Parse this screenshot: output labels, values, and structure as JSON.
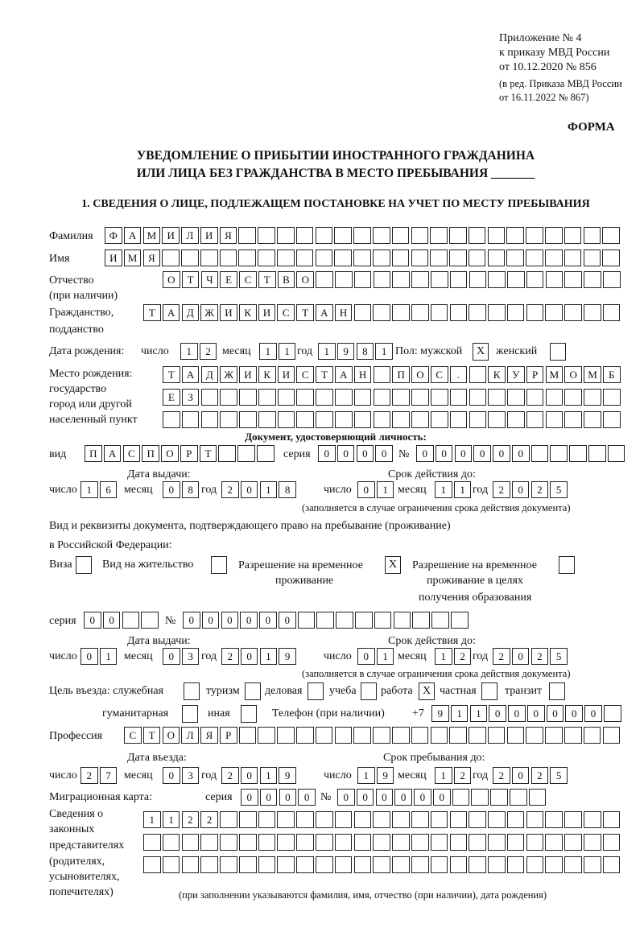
{
  "header": {
    "appendix": "Приложение № 4",
    "order": "к приказу МВД России",
    "order_date": "от 10.12.2020 № 856",
    "edition1": "(в ред. Приказа МВД России",
    "edition2": "от 16.11.2022 № 867)",
    "form": "ФОРМА"
  },
  "title": {
    "line1": "УВЕДОМЛЕНИЕ О ПРИБЫТИИ ИНОСТРАННОГО ГРАЖДАНИНА",
    "line2": "ИЛИ ЛИЦА БЕЗ ГРАЖДАНСТВА В МЕСТО ПРЕБЫВАНИЯ _______"
  },
  "section1": {
    "heading": "1. СВЕДЕНИЯ О ЛИЦЕ, ПОДЛЕЖАЩЕМ ПОСТАНОВКЕ НА УЧЕТ ПО МЕСТУ ПРЕБЫВАНИЯ",
    "surname_label": "Фамилия",
    "surname": "ФАМИЛИЯ",
    "name_label": "Имя",
    "name": "ИМЯ",
    "patronymic_label1": "Отчество",
    "patronymic_label2": "(при наличии)",
    "patronymic": "ОТЧЕСТВО",
    "citizenship_label1": "Гражданство,",
    "citizenship_label2": "подданство",
    "citizenship": "ТАДЖИКИСТАН",
    "birth": {
      "label": "Дата рождения:",
      "day_label": "число",
      "day": "12",
      "month_label": "месяц",
      "month": "11",
      "year_label": "год",
      "year": "1981"
    },
    "sex": {
      "label": "Пол: мужской",
      "male": "X",
      "female_label": "женский",
      "female": ""
    },
    "birthplace": {
      "label1": "Место рождения:",
      "label2": "государство",
      "label3": "город или другой",
      "label4": "населенный пункт",
      "line1": [
        "Т",
        "А",
        "Д",
        "Ж",
        "И",
        "К",
        "И",
        "С",
        "Т",
        "А",
        "Н",
        "",
        "П",
        "О",
        "С",
        ".",
        "",
        "К",
        "У",
        "Р",
        "М",
        "О",
        "М",
        "Б"
      ],
      "line2": "ЕЗ",
      "line3": ""
    },
    "identity_doc": {
      "heading": "Документ, удостоверяющий личность:",
      "kind_label": "вид",
      "kind": "ПАСПОРТ",
      "series_label": "серия",
      "series": "0000",
      "number_label": "№",
      "number": "000000",
      "issue_label": "Дата выдачи:",
      "issue": {
        "day": "16",
        "month": "08",
        "year": "2018"
      },
      "valid_label": "Срок действия до:",
      "valid": {
        "day": "01",
        "month": "11",
        "year": "2025"
      },
      "note": "(заполняется в случае ограничения срока действия документа)"
    },
    "stay_doc": {
      "label1": "Вид и реквизиты документа, подтверждающего право на пребывание (проживание)",
      "label2": "в Российской Федерации:",
      "visa_label": "Виза",
      "visa": "",
      "residence_label": "Вид на жительство",
      "residence": "",
      "temp_label1": "Разрешение на временное",
      "temp_label2": "проживание",
      "temp": "X",
      "edu_label1": "Разрешение на временное",
      "edu_label2": "проживание в целях",
      "edu_label3": "получения образования",
      "edu": "",
      "series_label": "серия",
      "series": "00",
      "number_label": "№",
      "number": "000000",
      "issue_label": "Дата выдачи:",
      "issue": {
        "day": "01",
        "month": "03",
        "year": "2019"
      },
      "valid_label": "Срок действия до:",
      "valid": {
        "day": "01",
        "month": "12",
        "year": "2025"
      },
      "note": "(заполняется в случае ограничения срока действия документа)"
    },
    "purpose": {
      "label": "Цель въезда: служебная",
      "official": "",
      "tourism_label": "туризм",
      "tourism": "",
      "business_label": "деловая",
      "business": "",
      "study_label": "учеба",
      "study": "",
      "work_label": "работа",
      "work": "X",
      "private_label": "частная",
      "private": "",
      "transit_label": "транзит",
      "transit": "",
      "humanitarian_label": "гуманитарная",
      "humanitarian": "",
      "other_label": "иная",
      "other": ""
    },
    "phone": {
      "label": "Телефон (при наличии)",
      "prefix": "+7",
      "number": "911000000"
    },
    "profession": {
      "label": "Профессия",
      "value": "СТОЛЯР"
    },
    "entry": {
      "label": "Дата въезда:",
      "day": "27",
      "month": "03",
      "year": "2019",
      "stay_until_label": "Срок пребывания до:",
      "until": {
        "day": "19",
        "month": "12",
        "year": "2025"
      }
    },
    "migration_card": {
      "label": "Миграционная карта:",
      "series_label": "серия",
      "series": "0000",
      "number_label": "№",
      "number": "000000"
    },
    "representatives": {
      "label1": "Сведения о",
      "label2": "законных",
      "label3": "представителях",
      "label4": "(родителях,",
      "label5": "усыновителях,",
      "label6": "попечителях)",
      "line1": "1122",
      "line2": "",
      "line3": "",
      "note": "(при заполнении указываются фамилия, имя, отчество (при наличии), дата рождения)"
    },
    "common": {
      "day": "число",
      "month": "месяц",
      "year": "год"
    }
  }
}
